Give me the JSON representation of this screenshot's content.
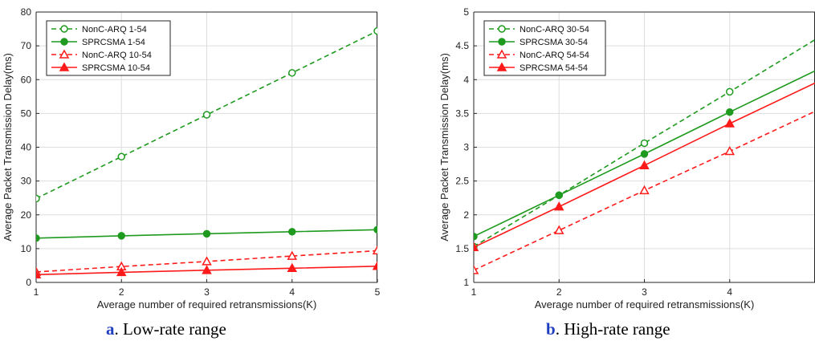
{
  "colors": {
    "green": "#1e9a1e",
    "red": "#ff1a1a",
    "grid": "#dedede",
    "axis": "#262626",
    "caption_letter": "#1f3fbf"
  },
  "captions": [
    {
      "letter": "a",
      "text": ". Low-rate range"
    },
    {
      "letter": "b",
      "text": ". High-rate range"
    }
  ],
  "chart_data": [
    {
      "type": "line",
      "xlabel": "Average number of required retransmissions(K)",
      "ylabel": "Average Packet Transmission Delay(ms)",
      "xlim": [
        1,
        5
      ],
      "ylim": [
        0,
        80
      ],
      "xticks": [
        1,
        2,
        3,
        4,
        5
      ],
      "yticks": [
        0,
        10,
        20,
        30,
        40,
        50,
        60,
        70,
        80
      ],
      "x": [
        1,
        2,
        3,
        4,
        5
      ],
      "grid": true,
      "legend_position": "top-left",
      "series": [
        {
          "name": "NonC-ARQ 1-54",
          "color": "green",
          "dash": true,
          "marker": "circle-open",
          "values": [
            24.8,
            37.2,
            49.6,
            62.0,
            74.4
          ]
        },
        {
          "name": "SPRCSMA 1-54",
          "color": "green",
          "dash": false,
          "marker": "circle-filled",
          "values": [
            13.1,
            13.8,
            14.4,
            15.0,
            15.6
          ]
        },
        {
          "name": "NonC-ARQ 10-54",
          "color": "red",
          "dash": true,
          "marker": "triangle-open",
          "values": [
            3.1,
            4.7,
            6.2,
            7.8,
            9.4
          ]
        },
        {
          "name": "SPRCSMA 10-54",
          "color": "red",
          "dash": false,
          "marker": "triangle-filled",
          "values": [
            2.3,
            3.0,
            3.6,
            4.2,
            4.8
          ]
        }
      ]
    },
    {
      "type": "line",
      "xlabel": "Average number of required retransmissions(K)",
      "ylabel": "Average Packet Transmission Delay(ms)",
      "xlim": [
        1,
        5
      ],
      "ylim": [
        1,
        5
      ],
      "xticks": [
        1,
        2,
        3,
        4
      ],
      "yticks": [
        1,
        1.5,
        2,
        2.5,
        3,
        3.5,
        4,
        4.5,
        5
      ],
      "x": [
        1,
        2,
        3,
        4,
        5
      ],
      "grid": true,
      "legend_position": "top-left",
      "series": [
        {
          "name": "NonC-ARQ 30-54",
          "color": "green",
          "dash": true,
          "marker": "circle-open",
          "values": [
            1.53,
            2.29,
            3.06,
            3.82,
            4.59
          ],
          "marker_count": 4
        },
        {
          "name": "SPRCSMA 30-54",
          "color": "green",
          "dash": false,
          "marker": "circle-filled",
          "values": [
            1.68,
            2.29,
            2.9,
            3.52,
            4.13
          ],
          "marker_count": 4
        },
        {
          "name": "NonC-ARQ 54-54",
          "color": "red",
          "dash": true,
          "marker": "triangle-open",
          "values": [
            1.18,
            1.77,
            2.36,
            2.94,
            3.53
          ],
          "marker_count": 4
        },
        {
          "name": "SPRCSMA 54-54",
          "color": "red",
          "dash": false,
          "marker": "triangle-filled",
          "values": [
            1.52,
            2.12,
            2.73,
            3.35,
            3.95
          ],
          "marker_count": 4
        }
      ]
    }
  ]
}
